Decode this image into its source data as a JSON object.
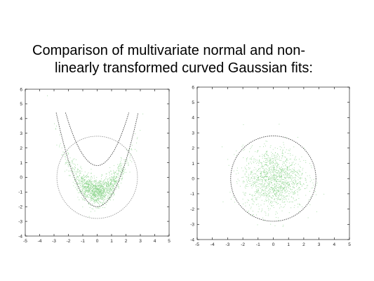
{
  "slide": {
    "title_line1": "Comparison of multivariate normal and non-",
    "title_line2": "linearly transformed curved Gaussian fits:"
  },
  "colors": {
    "points": "#7fd07f",
    "contour": "#444444",
    "axes": "#000000"
  },
  "chart_data": [
    {
      "type": "scatter",
      "xlim": [
        -5,
        5
      ],
      "ylim": [
        -4,
        6
      ],
      "x_ticks": [
        "-5",
        "-4",
        "-3",
        "-2",
        "-1",
        "0",
        "1",
        "2",
        "3",
        "4",
        "5"
      ],
      "y_ticks": [
        "6",
        "5",
        "4",
        "3",
        "2",
        "1",
        "0",
        "-1",
        "-2",
        "-3",
        "-4"
      ],
      "points": "banana-shaped cloud, y ≈ 0.5·x² − 1 with noise",
      "contours": [
        {
          "kind": "circle",
          "center": [
            0,
            0
          ],
          "radius": 2.8
        },
        {
          "kind": "curved-band",
          "inner_min_y": -2.0,
          "outer_min_y": 0.8,
          "top_y": 4.4
        }
      ]
    },
    {
      "type": "scatter",
      "xlim": [
        -5,
        5
      ],
      "ylim": [
        -4,
        6
      ],
      "x_ticks": [
        "-5",
        "-4",
        "-3",
        "-2",
        "-1",
        "0",
        "1",
        "2",
        "3",
        "4",
        "5"
      ],
      "y_ticks": [
        "6",
        "5",
        "4",
        "3",
        "2",
        "1",
        "0",
        "-1",
        "-2",
        "-3",
        "-4"
      ],
      "points": "isotropic Gaussian cloud centered at origin",
      "contours": [
        {
          "kind": "circle",
          "center": [
            0,
            0
          ],
          "radius": 2.8
        }
      ]
    }
  ]
}
